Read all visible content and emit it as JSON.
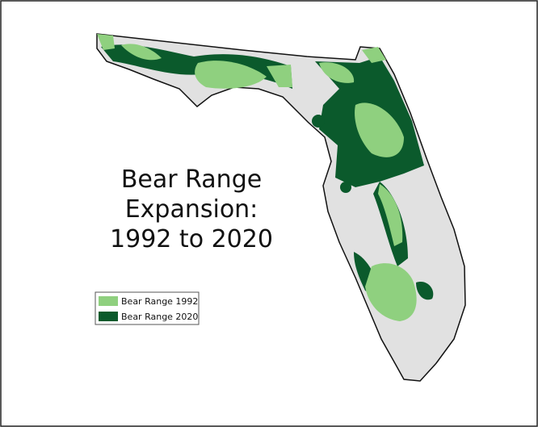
{
  "map": {
    "title_lines": [
      "Bear Range",
      "Expansion:",
      "1992 to 2020"
    ],
    "legend": [
      {
        "label": "Bear Range 1992",
        "color": "#8fd07f"
      },
      {
        "label": "Bear Range 2020",
        "color": "#0b5a2c"
      }
    ]
  }
}
